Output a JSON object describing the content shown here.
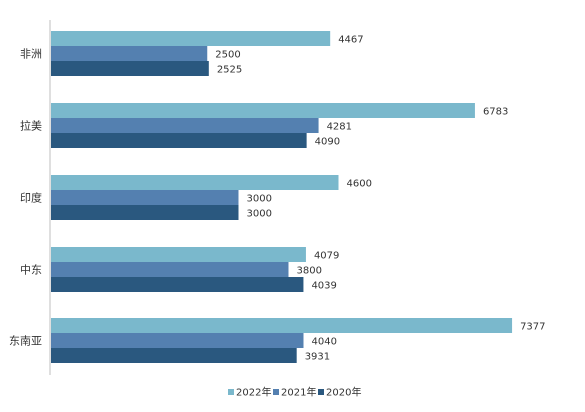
{
  "chart_data": {
    "type": "bar",
    "orientation": "horizontal",
    "title": "",
    "xlabel": "",
    "ylabel": "",
    "xlim": [
      0,
      8000
    ],
    "grid": false,
    "legend_position": "bottom",
    "categories": [
      "非洲",
      "拉美",
      "印度",
      "中东",
      "东南亚"
    ],
    "series": [
      {
        "name": "2022年",
        "color": "#7ab8cc",
        "values": [
          4467,
          6783,
          4600,
          4079,
          7377
        ]
      },
      {
        "name": "2021年",
        "color": "#5480b0",
        "values": [
          2500,
          4281,
          3000,
          3800,
          4040
        ]
      },
      {
        "name": "2020年",
        "color": "#2a587f",
        "values": [
          2525,
          4090,
          3000,
          4039,
          3931
        ]
      }
    ]
  }
}
